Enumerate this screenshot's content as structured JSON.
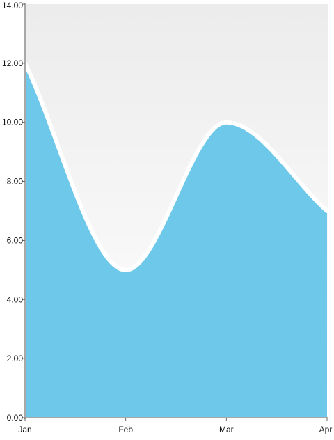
{
  "chart_data": {
    "type": "area",
    "title": "",
    "xlabel": "",
    "ylabel": "",
    "categories": [
      "Jan",
      "Feb",
      "Mar",
      "Apr"
    ],
    "series": [
      {
        "values": [
          12,
          5,
          10,
          7
        ]
      }
    ],
    "ylim": [
      0,
      14
    ],
    "y_ticks": [
      "0.00",
      "2.00",
      "4.00",
      "6.00",
      "8.00",
      "10.00",
      "12.00",
      "14.00"
    ],
    "smooth": true,
    "grid": false,
    "legend": "none",
    "colors": {
      "area_fill": "#6ec8ea",
      "area_stroke": "#ffffff",
      "plot_bg_top": "#ececec",
      "plot_bg_bottom": "#ffffff",
      "axis": "#a8a8a8",
      "text": "#111111"
    }
  }
}
